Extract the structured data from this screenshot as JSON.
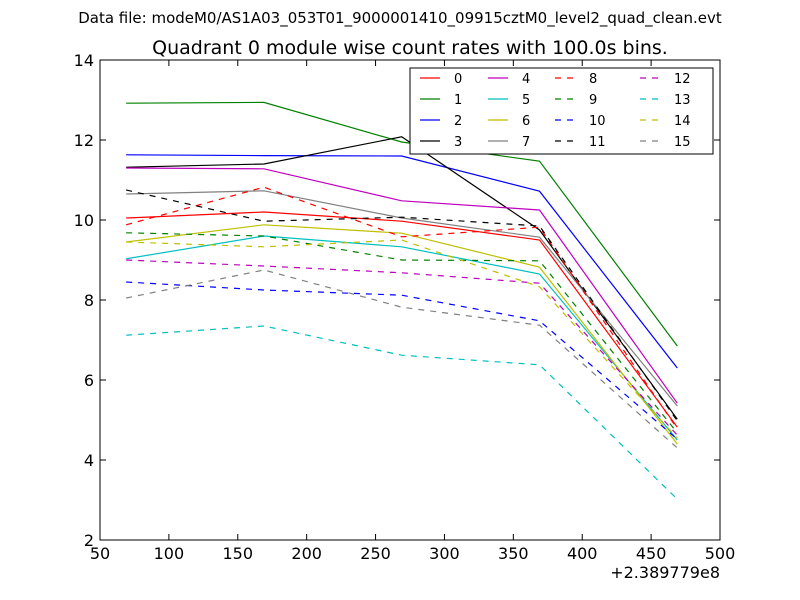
{
  "header": {
    "datafile_label": "Data file: modeM0/AS1A03_053T01_9000001410_09915cztM0_level2_quad_clean.evt"
  },
  "chart_data": {
    "type": "line",
    "title": "Quadrant 0 module wise count rates with 100.0s bins.",
    "xlabel": "",
    "ylabel": "",
    "x_offset_label": "+2.389779e8",
    "xlim": [
      50,
      500
    ],
    "ylim": [
      2,
      14
    ],
    "xticks": [
      50,
      100,
      150,
      200,
      250,
      300,
      350,
      400,
      450,
      500
    ],
    "yticks": [
      2,
      4,
      6,
      8,
      10,
      12,
      14
    ],
    "grid": false,
    "legend_position": "top-right",
    "legend_columns": 4,
    "x": [
      69,
      169,
      269,
      369,
      469
    ],
    "series": [
      {
        "name": "0",
        "color": "#ff0000",
        "dash": "solid",
        "values": [
          10.05,
          10.2,
          9.97,
          9.5,
          4.82
        ]
      },
      {
        "name": "1",
        "color": "#008000",
        "dash": "solid",
        "values": [
          12.92,
          12.94,
          11.95,
          11.47,
          6.85
        ]
      },
      {
        "name": "2",
        "color": "#0000ff",
        "dash": "solid",
        "values": [
          11.63,
          11.61,
          11.6,
          10.72,
          6.3
        ]
      },
      {
        "name": "3",
        "color": "#000000",
        "dash": "solid",
        "values": [
          11.32,
          11.4,
          12.08,
          9.75,
          5.02
        ]
      },
      {
        "name": "4",
        "color": "#bf00bf",
        "dash": "solid",
        "values": [
          11.3,
          11.28,
          10.48,
          10.25,
          5.42
        ]
      },
      {
        "name": "5",
        "color": "#00bfbf",
        "dash": "solid",
        "values": [
          9.03,
          9.6,
          9.33,
          8.65,
          4.5
        ]
      },
      {
        "name": "6",
        "color": "#bfbf00",
        "dash": "solid",
        "values": [
          9.45,
          9.88,
          9.67,
          8.82,
          4.4
        ]
      },
      {
        "name": "7",
        "color": "#808080",
        "dash": "solid",
        "values": [
          10.65,
          10.73,
          10.05,
          9.57,
          5.35
        ]
      },
      {
        "name": "8",
        "color": "#ff0000",
        "dash": "dashed",
        "values": [
          9.88,
          10.82,
          9.58,
          9.82,
          4.78
        ]
      },
      {
        "name": "9",
        "color": "#008000",
        "dash": "dashed",
        "values": [
          9.68,
          9.6,
          9.0,
          8.98,
          4.68
        ]
      },
      {
        "name": "10",
        "color": "#0000ff",
        "dash": "dashed",
        "values": [
          8.45,
          8.25,
          8.12,
          7.48,
          4.52
        ]
      },
      {
        "name": "11",
        "color": "#000000",
        "dash": "dashed",
        "values": [
          10.75,
          9.97,
          10.07,
          9.85,
          4.98
        ]
      },
      {
        "name": "12",
        "color": "#bf00bf",
        "dash": "dashed",
        "values": [
          9.0,
          8.85,
          8.68,
          8.42,
          4.62
        ]
      },
      {
        "name": "13",
        "color": "#00bfbf",
        "dash": "dashed",
        "values": [
          7.12,
          7.35,
          6.62,
          6.38,
          3.02
        ]
      },
      {
        "name": "14",
        "color": "#bfbf00",
        "dash": "dashed",
        "values": [
          9.45,
          9.33,
          9.5,
          8.33,
          4.55
        ]
      },
      {
        "name": "15",
        "color": "#808080",
        "dash": "dashed",
        "values": [
          8.05,
          8.75,
          7.82,
          7.37,
          4.3
        ]
      }
    ]
  }
}
